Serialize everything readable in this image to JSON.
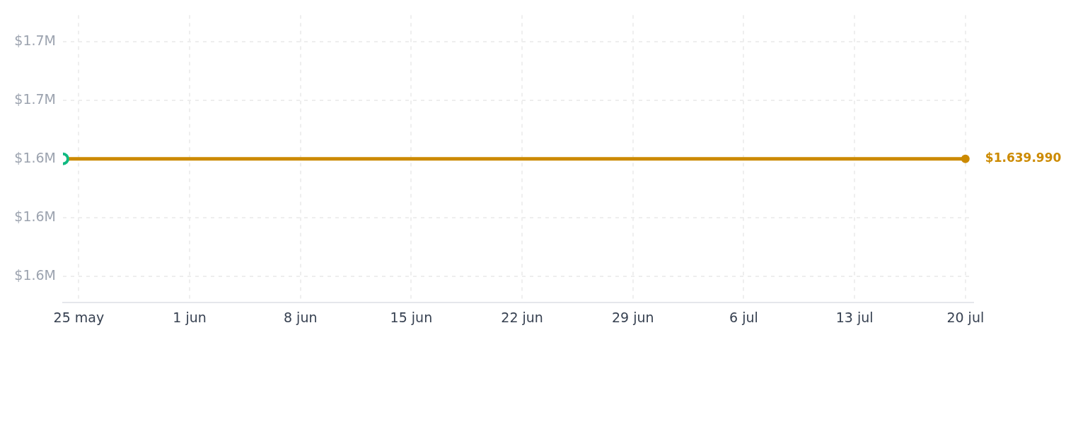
{
  "chart_data": {
    "type": "line",
    "xlim": [
      "--05-24",
      "--07-20T12:00"
    ],
    "xticks": [
      {
        "value": "--05-25",
        "label": "25 may"
      },
      {
        "value": "--06-01",
        "label": "1 jun"
      },
      {
        "value": "--06-08",
        "label": "8 jun"
      },
      {
        "value": "--06-15",
        "label": "15 jun"
      },
      {
        "value": "--06-22",
        "label": "22 jun"
      },
      {
        "value": "--06-29",
        "label": "29 jun"
      },
      {
        "value": "--07-06",
        "label": "6 jul"
      },
      {
        "value": "--07-13",
        "label": "13 jul"
      },
      {
        "value": "--07-20",
        "label": "20 jul"
      }
    ],
    "ylim": [
      1591000,
      1689000
    ],
    "yticks": [
      {
        "value": 1600000,
        "label": "$1.6M"
      },
      {
        "value": 1620000,
        "label": "$1.6M"
      },
      {
        "value": 1640000,
        "label": "$1.6M"
      },
      {
        "value": 1660000,
        "label": "$1.7M"
      },
      {
        "value": 1680000,
        "label": "$1.7M"
      }
    ],
    "grid": true,
    "marker": "circle",
    "series": [
      {
        "color": "#cc8a00",
        "x": [
          "--05-24",
          "--07-20"
        ],
        "values": [
          1639990,
          1639990
        ],
        "value_labels": [
          null,
          "$1.639.990"
        ]
      },
      {
        "type": "scatter",
        "color": "#10b981",
        "x": [
          "--05-24"
        ],
        "values": [
          1639990
        ]
      }
    ]
  }
}
